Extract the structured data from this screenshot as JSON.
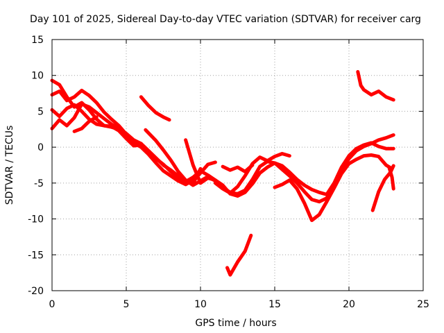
{
  "chart_data": {
    "type": "line",
    "title": "Day 101 of 2025, Sidereal Day-to-day VTEC variation (SDTVAR) for receiver carg",
    "xlabel": "GPS time / hours",
    "ylabel": "SDTVAR / TECUs",
    "xlim": [
      0,
      25
    ],
    "ylim": [
      -20,
      15
    ],
    "xticks": [
      0,
      5,
      10,
      15,
      20,
      25
    ],
    "yticks": [
      -20,
      -15,
      -10,
      -5,
      0,
      5,
      10,
      15
    ],
    "grid": true,
    "series_color": "#ff0000",
    "series": [
      {
        "name": "arc-1",
        "x": [
          0,
          0.5,
          1.0,
          1.5,
          2.0,
          2.5,
          3.0,
          3.5,
          4.0,
          4.5,
          5.0,
          5.5,
          6.0,
          6.5,
          7.0,
          7.5,
          8.0,
          8.5,
          9.0,
          9.5,
          10.0
        ],
        "y": [
          9.3,
          8.7,
          7.0,
          5.6,
          6.2,
          5.2,
          3.9,
          3.0,
          2.8,
          2.5,
          1.5,
          0.8,
          0.5,
          -0.5,
          -1.5,
          -2.5,
          -3.2,
          -4.0,
          -4.6,
          -5.1,
          -3.0
        ]
      },
      {
        "name": "arc-2",
        "x": [
          0,
          0.5,
          1.0,
          1.5,
          2.0,
          2.5,
          3.0,
          3.5,
          4.0,
          4.5,
          5.0,
          5.5,
          6.0,
          6.5,
          7.0,
          7.5,
          8.0,
          8.5,
          9.0,
          9.5,
          10.0,
          10.5,
          11.0
        ],
        "y": [
          7.3,
          7.8,
          6.5,
          7.0,
          7.9,
          7.2,
          6.2,
          4.9,
          3.9,
          3.0,
          1.8,
          0.6,
          0.0,
          -1.0,
          -2.2,
          -3.3,
          -4.0,
          -4.7,
          -5.2,
          -4.6,
          -3.6,
          -2.4,
          -2.1
        ]
      },
      {
        "name": "arc-3",
        "x": [
          0,
          0.5,
          1.0,
          1.5,
          2.0,
          2.5,
          3.0,
          3.5,
          4.0,
          4.5,
          5.0,
          5.5,
          6.0,
          6.5,
          7.0,
          7.5,
          8.0,
          8.5,
          9.0,
          9.5,
          10.0,
          10.5,
          11.0
        ],
        "y": [
          5.2,
          4.3,
          5.4,
          5.9,
          5.0,
          3.9,
          3.2,
          3.0,
          2.9,
          2.3,
          1.2,
          0.2,
          0.3,
          -0.6,
          -1.6,
          -2.4,
          -3.4,
          -4.2,
          -4.8,
          -4.2,
          -3.3,
          -3.9,
          -4.6
        ]
      },
      {
        "name": "arc-4",
        "x": [
          0,
          0.5,
          1.0,
          1.5,
          2.0,
          2.5,
          3.0,
          3.5,
          4.0,
          4.5,
          5.0,
          5.5,
          6.0
        ],
        "y": [
          2.6,
          3.8,
          3.0,
          4.1,
          6.0,
          5.6,
          4.8,
          4.0,
          3.2,
          2.6,
          1.9,
          1.0,
          0.5
        ]
      },
      {
        "name": "arc-5",
        "x": [
          1.5,
          2.0,
          2.5,
          3.0
        ],
        "y": [
          2.2,
          2.6,
          3.6,
          4.2
        ]
      },
      {
        "name": "arc-6",
        "x": [
          6.0,
          6.5,
          7.0,
          7.5,
          7.9
        ],
        "y": [
          7.0,
          5.8,
          4.8,
          4.2,
          3.8
        ]
      },
      {
        "name": "arc-7",
        "x": [
          6.3,
          7.0,
          7.5,
          8.0,
          8.5,
          9.0,
          9.5,
          10.0,
          10.5,
          11.0,
          11.5,
          12.0,
          12.5,
          13.0,
          13.5,
          14.0,
          14.5,
          15.0,
          15.5,
          16.0,
          16.5,
          17.0,
          17.5,
          18.0,
          18.5,
          19.0,
          19.5,
          20.0,
          20.5,
          21.0,
          21.5,
          22.0,
          22.5,
          23.0
        ],
        "y": [
          2.4,
          0.9,
          -0.4,
          -1.8,
          -3.4,
          -4.6,
          -5.3,
          -4.7,
          -4.1,
          -4.7,
          -5.6,
          -6.3,
          -6.5,
          -6.0,
          -4.5,
          -2.7,
          -2.0,
          -2.2,
          -3.1,
          -4.0,
          -5.0,
          -6.2,
          -7.3,
          -7.6,
          -7.1,
          -5.3,
          -3.3,
          -1.6,
          -0.5,
          0.1,
          0.5,
          1.0,
          1.3,
          1.7
        ]
      },
      {
        "name": "arc-8",
        "x": [
          9.0,
          9.5,
          10.0,
          10.5,
          11.0,
          11.5,
          12.0,
          12.5,
          13.0,
          13.5,
          14.0,
          14.5,
          15.0,
          15.5,
          16.0,
          16.5,
          17.0,
          17.5,
          18.0,
          18.5,
          19.0,
          19.5,
          20.0,
          20.5,
          21.0,
          21.5,
          22.0,
          22.5,
          23.0
        ],
        "y": [
          1.0,
          -2.5,
          -5.0,
          -4.3,
          -4.6,
          -5.3,
          -6.5,
          -6.8,
          -6.3,
          -5.1,
          -3.6,
          -2.8,
          -2.2,
          -2.6,
          -3.5,
          -4.5,
          -5.3,
          -5.9,
          -6.3,
          -6.6,
          -5.0,
          -2.8,
          -1.2,
          -0.2,
          0.3,
          0.6,
          0.1,
          -0.2,
          -0.2
        ]
      },
      {
        "name": "arc-9",
        "x": [
          11.0,
          11.5,
          12.0,
          12.5,
          13.0,
          13.5,
          14.0,
          14.5,
          15.0,
          15.5,
          16.0
        ],
        "y": [
          -5.0,
          -5.8,
          -6.4,
          -5.5,
          -4.0,
          -2.3,
          -1.4,
          -1.9,
          -1.3,
          -0.9,
          -1.2
        ]
      },
      {
        "name": "arc-10",
        "x": [
          11.5,
          12.0,
          12.5,
          13.0,
          13.5
        ],
        "y": [
          -2.7,
          -3.2,
          -2.8,
          -3.4,
          -2.5
        ]
      },
      {
        "name": "arc-11",
        "x": [
          11.8,
          12.0,
          12.5,
          13.0,
          13.4
        ],
        "y": [
          -16.8,
          -17.8,
          -16.0,
          -14.5,
          -12.3
        ]
      },
      {
        "name": "arc-12",
        "x": [
          15.0,
          15.5,
          16.0,
          16.5,
          17.0,
          17.5,
          18.0,
          18.5,
          19.0,
          19.5,
          20.0,
          20.5,
          21.0,
          21.5,
          22.0,
          22.5,
          22.9
        ],
        "y": [
          -5.6,
          -5.2,
          -4.6,
          -5.8,
          -7.8,
          -10.2,
          -9.4,
          -7.6,
          -5.7,
          -3.7,
          -2.3,
          -1.7,
          -1.2,
          -1.1,
          -1.3,
          -2.5,
          -3.0
        ]
      },
      {
        "name": "arc-13",
        "x": [
          20.6,
          20.8,
          21.0,
          21.5,
          22.0,
          22.5,
          23.0
        ],
        "y": [
          10.5,
          8.6,
          8.0,
          7.3,
          7.8,
          7.0,
          6.6
        ]
      },
      {
        "name": "arc-14",
        "x": [
          21.6,
          22.0,
          22.4,
          22.8,
          23.0
        ],
        "y": [
          -8.8,
          -6.2,
          -4.5,
          -3.5,
          -2.6
        ]
      },
      {
        "name": "arc-15",
        "x": [
          22.7,
          22.9,
          23.0
        ],
        "y": [
          -2.8,
          -4.2,
          -5.8
        ]
      }
    ]
  }
}
